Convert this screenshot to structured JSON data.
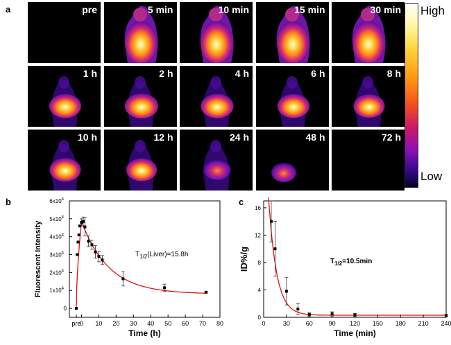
{
  "panels": {
    "a": "a",
    "b": "b",
    "c": "c"
  },
  "tiles": [
    {
      "label": "pre",
      "intensity": 0.0,
      "shape": "none"
    },
    {
      "label": "5 min",
      "intensity": 0.9,
      "shape": "whole"
    },
    {
      "label": "10 min",
      "intensity": 0.9,
      "shape": "whole"
    },
    {
      "label": "15 min",
      "intensity": 0.85,
      "shape": "whole"
    },
    {
      "label": "30 min",
      "intensity": 0.85,
      "shape": "whole"
    },
    {
      "label": "1 h",
      "intensity": 0.9,
      "shape": "liver"
    },
    {
      "label": "2 h",
      "intensity": 1.0,
      "shape": "liver"
    },
    {
      "label": "4 h",
      "intensity": 0.95,
      "shape": "liver"
    },
    {
      "label": "6 h",
      "intensity": 0.9,
      "shape": "liver"
    },
    {
      "label": "8 h",
      "intensity": 0.85,
      "shape": "liver"
    },
    {
      "label": "10 h",
      "intensity": 0.85,
      "shape": "liver"
    },
    {
      "label": "12 h",
      "intensity": 0.8,
      "shape": "liver"
    },
    {
      "label": "24 h",
      "intensity": 0.55,
      "shape": "liver"
    },
    {
      "label": "48 h",
      "intensity": 0.3,
      "shape": "faint"
    },
    {
      "label": "72 h",
      "intensity": 0.05,
      "shape": "none"
    }
  ],
  "colorbar": {
    "high": "High",
    "low": "Low"
  },
  "chart_data": [
    {
      "type": "scatter",
      "xlabel": "Time (h)",
      "ylabel": "Fluorescent Intensity",
      "annotation_main": "T",
      "annotation_sub": "1/2",
      "annotation_rest": "(Liver)=15.8h",
      "xlim": [
        -7,
        80
      ],
      "ylim": [
        -5000,
        60000
      ],
      "x_ticks": [
        {
          "v": -3,
          "label": "pre"
        },
        {
          "v": 0,
          "label": "0"
        },
        {
          "v": 10,
          "label": "10"
        },
        {
          "v": 20,
          "label": "20"
        },
        {
          "v": 30,
          "label": "30"
        },
        {
          "v": 40,
          "label": "40"
        },
        {
          "v": 50,
          "label": "50"
        },
        {
          "v": 60,
          "label": "60"
        },
        {
          "v": 70,
          "label": "70"
        },
        {
          "v": 80,
          "label": "80"
        }
      ],
      "y_ticks": [
        {
          "v": 0,
          "base": "0",
          "exp": ""
        },
        {
          "v": 10000,
          "base": "1x10",
          "exp": "4"
        },
        {
          "v": 20000,
          "base": "2x10",
          "exp": "4"
        },
        {
          "v": 30000,
          "base": "3x10",
          "exp": "4"
        },
        {
          "v": 40000,
          "base": "4x10",
          "exp": "4"
        },
        {
          "v": 50000,
          "base": "5x10",
          "exp": "4"
        },
        {
          "v": 60000,
          "base": "6x10",
          "exp": "4"
        }
      ],
      "points": [
        {
          "x": -3,
          "y": 0,
          "err": 0
        },
        {
          "x": -2.5,
          "y": 30000,
          "err": 0
        },
        {
          "x": -2,
          "y": 37000,
          "err": 0
        },
        {
          "x": -1.5,
          "y": 41000,
          "err": 0
        },
        {
          "x": -1,
          "y": 46000,
          "err": 0
        },
        {
          "x": 0,
          "y": 48000,
          "err": 2000
        },
        {
          "x": 1,
          "y": 48500,
          "err": 2500
        },
        {
          "x": 2,
          "y": 45500,
          "err": 5000
        },
        {
          "x": 4,
          "y": 37500,
          "err": 3000
        },
        {
          "x": 6,
          "y": 35500,
          "err": 2500
        },
        {
          "x": 8,
          "y": 31500,
          "err": 3500
        },
        {
          "x": 10,
          "y": 29000,
          "err": 3000
        },
        {
          "x": 12,
          "y": 27000,
          "err": 2500
        },
        {
          "x": 24,
          "y": 16500,
          "err": 4000
        },
        {
          "x": 48,
          "y": 11500,
          "err": 2000
        },
        {
          "x": 72,
          "y": 9000,
          "err": 500
        }
      ],
      "fit": {
        "type": "exp_decay",
        "x0": 0,
        "peak": 48500,
        "plateau": 8000,
        "tau": 15.8,
        "rise_start": -3
      }
    },
    {
      "type": "scatter",
      "xlabel": "Time (min)",
      "ylabel": "ID%/g",
      "annotation_main": "T",
      "annotation_sub": "1/2",
      "annotation_rest": "=10.5min",
      "xlim": [
        0,
        240
      ],
      "ylim": [
        0,
        17
      ],
      "x_ticks": [
        {
          "v": 0,
          "label": "0"
        },
        {
          "v": 30,
          "label": "30"
        },
        {
          "v": 60,
          "label": "60"
        },
        {
          "v": 90,
          "label": "90"
        },
        {
          "v": 120,
          "label": "120"
        },
        {
          "v": 150,
          "label": "150"
        },
        {
          "v": 180,
          "label": "180"
        },
        {
          "v": 210,
          "label": "210"
        },
        {
          "v": 240,
          "label": "240"
        }
      ],
      "y_ticks": [
        {
          "v": 0,
          "base": "0",
          "exp": ""
        },
        {
          "v": 4,
          "base": "4",
          "exp": ""
        },
        {
          "v": 8,
          "base": "8",
          "exp": ""
        },
        {
          "v": 12,
          "base": "12",
          "exp": ""
        },
        {
          "v": 16,
          "base": "16",
          "exp": ""
        }
      ],
      "points": [
        {
          "x": 10,
          "y": 14,
          "err": 3
        },
        {
          "x": 15,
          "y": 10,
          "err": 4
        },
        {
          "x": 30,
          "y": 3.8,
          "err": 2.0
        },
        {
          "x": 45,
          "y": 1.2,
          "err": 0.8
        },
        {
          "x": 60,
          "y": 0.4,
          "err": 0.3
        },
        {
          "x": 90,
          "y": 0.5,
          "err": 0.3
        },
        {
          "x": 120,
          "y": 0.35,
          "err": 0.2
        },
        {
          "x": 240,
          "y": 0.25,
          "err": 0.2
        }
      ],
      "fit": {
        "type": "exp_decay",
        "x0": 5,
        "peak": 20,
        "plateau": 0.3,
        "tau": 10.5
      }
    }
  ]
}
